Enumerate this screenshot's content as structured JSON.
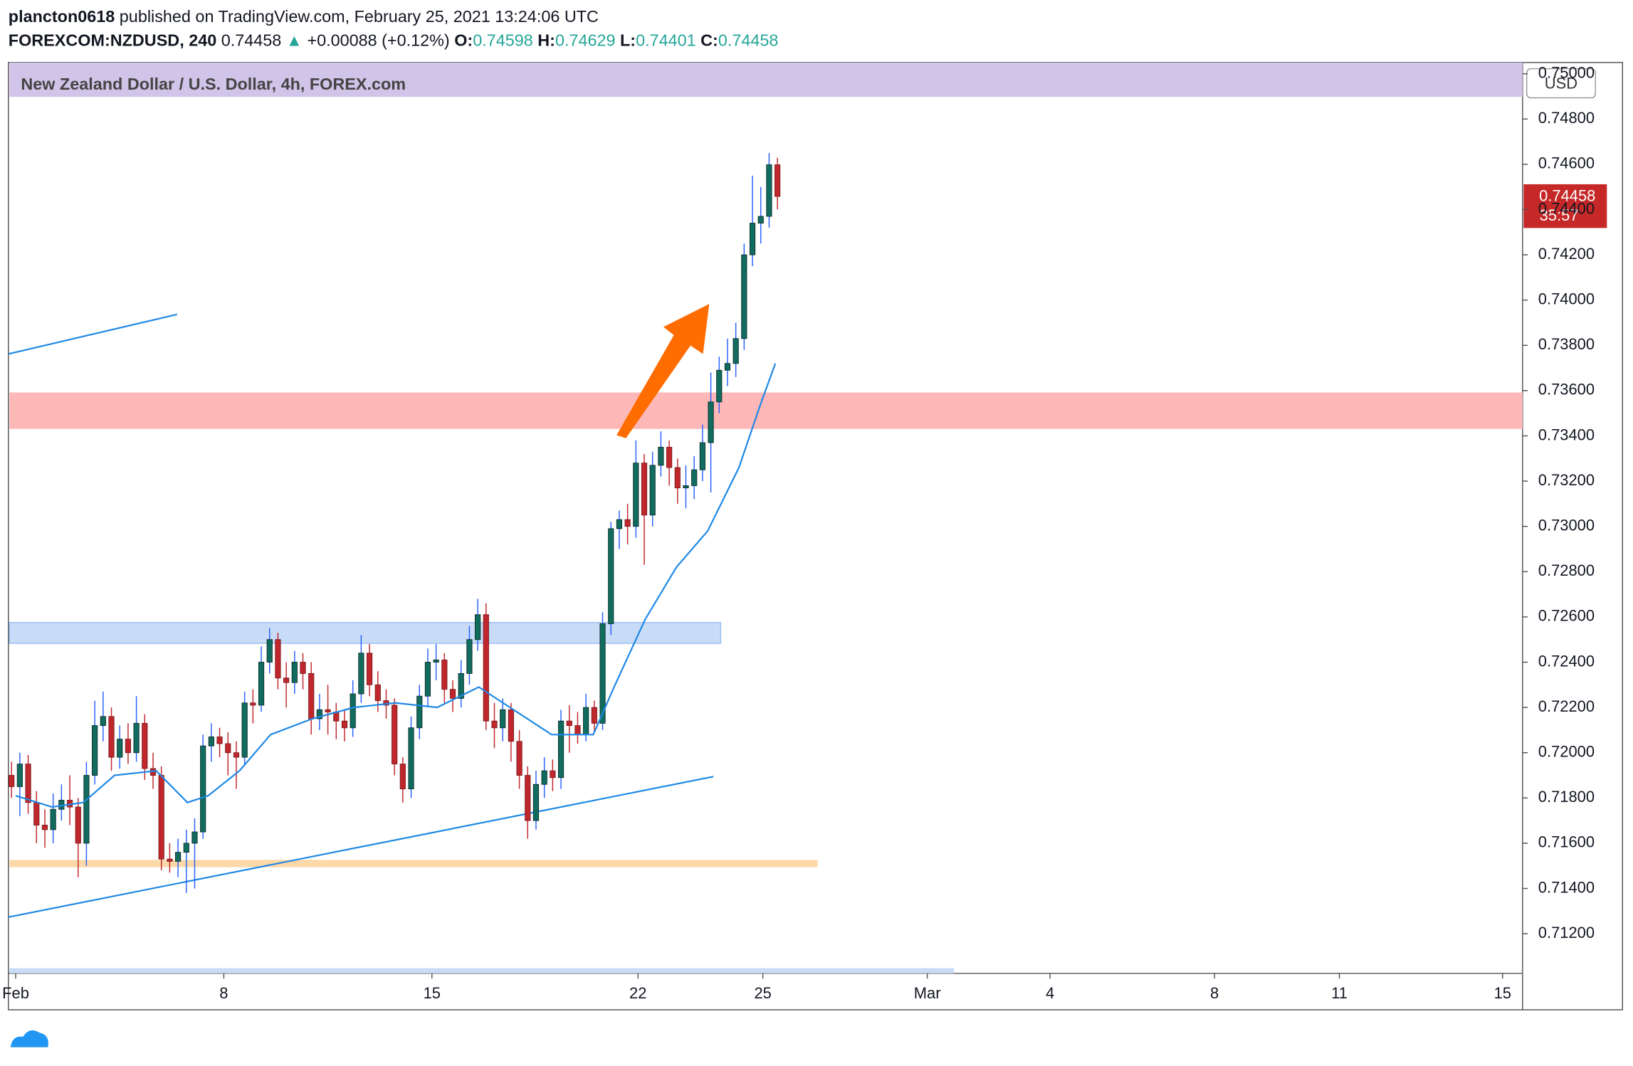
{
  "header": {
    "author": "plancton0618",
    "published": "published on TradingView.com, February 25, 2021 13:24:06 UTC",
    "symbol": "FOREXCOM:NZDUSD, 240",
    "last": "0.74458",
    "arrow": "▲",
    "change": "+0.00088 (+0.12%)",
    "o_label": "O:",
    "o": "0.74598",
    "h_label": "H:",
    "h": "0.74629",
    "l_label": "L:",
    "l": "0.74401",
    "c_label": "C:",
    "c": "0.74458"
  },
  "chart_data": {
    "type": "candlestick",
    "title": "New Zealand Dollar / U.S. Dollar, 4h, FOREX.com",
    "currency": "USD",
    "price_label": "0.74458",
    "countdown": "35:57",
    "up_color": "#116b5e",
    "down_color": "#c0272d",
    "xlim": [
      -0.175,
      36.2
    ],
    "ylim": [
      0.71025,
      0.7505
    ],
    "xticks": [
      {
        "value": 0,
        "label": "Feb"
      },
      {
        "value": 5,
        "label": "8"
      },
      {
        "value": 10,
        "label": "15"
      },
      {
        "value": 14.95,
        "label": "22"
      },
      {
        "value": 17.95,
        "label": "25"
      },
      {
        "value": 21.9,
        "label": "Mar"
      },
      {
        "value": 24.85,
        "label": "4"
      },
      {
        "value": 28.8,
        "label": "8"
      },
      {
        "value": 31.8,
        "label": "11"
      },
      {
        "value": 35.72,
        "label": "15"
      }
    ],
    "yticks": [
      {
        "value": 0.712,
        "label": "0.71200"
      },
      {
        "value": 0.714,
        "label": "0.71400"
      },
      {
        "value": 0.716,
        "label": "0.71600"
      },
      {
        "value": 0.718,
        "label": "0.71800"
      },
      {
        "value": 0.72,
        "label": "0.72000"
      },
      {
        "value": 0.722,
        "label": "0.72200"
      },
      {
        "value": 0.724,
        "label": "0.72400"
      },
      {
        "value": 0.726,
        "label": "0.72600"
      },
      {
        "value": 0.728,
        "label": "0.72800"
      },
      {
        "value": 0.73,
        "label": "0.73000"
      },
      {
        "value": 0.732,
        "label": "0.73200"
      },
      {
        "value": 0.734,
        "label": "0.73400"
      },
      {
        "value": 0.736,
        "label": "0.73600"
      },
      {
        "value": 0.738,
        "label": "0.73800"
      },
      {
        "value": 0.74,
        "label": "0.74000"
      },
      {
        "value": 0.742,
        "label": "0.74200"
      },
      {
        "value": 0.744,
        "label": "0.74400"
      },
      {
        "value": 0.746,
        "label": "0.74600"
      },
      {
        "value": 0.748,
        "label": "0.74800"
      },
      {
        "value": 0.75,
        "label": "0.75000"
      }
    ],
    "candles": {
      "x": [
        -0.1,
        0.1,
        0.3,
        0.5,
        0.7,
        0.9,
        1.1,
        1.3,
        1.5,
        1.7,
        1.9,
        2.1,
        2.3,
        2.5,
        2.7,
        2.9,
        3.1,
        3.3,
        3.5,
        3.7,
        3.9,
        4.1,
        4.3,
        4.5,
        4.7,
        4.9,
        5.1,
        5.3,
        5.5,
        5.7,
        5.9,
        6.1,
        6.3,
        6.5,
        6.7,
        6.9,
        7.1,
        7.3,
        7.5,
        7.7,
        7.9,
        8.1,
        8.3,
        8.5,
        8.7,
        8.9,
        9.1,
        9.3,
        9.5,
        9.7,
        9.9,
        10.1,
        10.3,
        10.5,
        10.7,
        10.9,
        11.1,
        11.3,
        11.5,
        11.7,
        11.9,
        12.1,
        12.3,
        12.5,
        12.7,
        12.9,
        13.1,
        13.3,
        13.5,
        13.7,
        13.9,
        14.1,
        14.3,
        14.5,
        14.7,
        14.9,
        15.1,
        15.3,
        15.5,
        15.7,
        15.9,
        16.1,
        16.3,
        16.5,
        16.7,
        16.9,
        17.1,
        17.3,
        17.5,
        17.7,
        17.9,
        18.1,
        18.3
      ],
      "open": [
        0.719,
        0.7185,
        0.7195,
        0.7178,
        0.7168,
        0.7166,
        0.7175,
        0.7179,
        0.7176,
        0.716,
        0.719,
        0.7212,
        0.7216,
        0.7198,
        0.7206,
        0.72,
        0.7213,
        0.7193,
        0.719,
        0.7153,
        0.7152,
        0.7156,
        0.716,
        0.7165,
        0.7203,
        0.7207,
        0.7204,
        0.72,
        0.7198,
        0.7222,
        0.7221,
        0.724,
        0.725,
        0.7233,
        0.7231,
        0.724,
        0.7235,
        0.7215,
        0.7219,
        0.7218,
        0.7214,
        0.7211,
        0.7226,
        0.7244,
        0.723,
        0.7223,
        0.7221,
        0.7195,
        0.7184,
        0.7211,
        0.7225,
        0.724,
        0.7241,
        0.7228,
        0.7224,
        0.7235,
        0.725,
        0.7261,
        0.7214,
        0.7211,
        0.7219,
        0.7205,
        0.719,
        0.717,
        0.7186,
        0.7192,
        0.7189,
        0.7214,
        0.7212,
        0.7208,
        0.722,
        0.7213,
        0.7257,
        0.7299,
        0.7303,
        0.73,
        0.7328,
        0.7305,
        0.7327,
        0.7335,
        0.7326,
        0.7317,
        0.7318,
        0.7325,
        0.7337,
        0.7355,
        0.7369,
        0.7372,
        0.7383,
        0.742,
        0.7434,
        0.7437,
        0.74598
      ],
      "high": [
        0.7196,
        0.72,
        0.7199,
        0.7183,
        0.7175,
        0.7182,
        0.7186,
        0.719,
        0.718,
        0.7196,
        0.7223,
        0.7227,
        0.722,
        0.7212,
        0.7213,
        0.7225,
        0.7217,
        0.72,
        0.7194,
        0.716,
        0.7162,
        0.7166,
        0.7171,
        0.7208,
        0.7213,
        0.7211,
        0.7209,
        0.7205,
        0.7227,
        0.7228,
        0.7247,
        0.7255,
        0.7253,
        0.724,
        0.7245,
        0.7244,
        0.724,
        0.7226,
        0.723,
        0.7222,
        0.7219,
        0.7232,
        0.7252,
        0.7248,
        0.7236,
        0.7228,
        0.7224,
        0.7198,
        0.7216,
        0.723,
        0.7246,
        0.7248,
        0.7244,
        0.7232,
        0.7241,
        0.7256,
        0.7268,
        0.7266,
        0.7222,
        0.7224,
        0.7222,
        0.721,
        0.7194,
        0.7192,
        0.7198,
        0.7197,
        0.7219,
        0.7221,
        0.7218,
        0.7226,
        0.7223,
        0.7262,
        0.7302,
        0.7307,
        0.731,
        0.7338,
        0.7332,
        0.7333,
        0.7342,
        0.7338,
        0.733,
        0.7327,
        0.7331,
        0.7345,
        0.7368,
        0.7375,
        0.7383,
        0.739,
        0.7425,
        0.7455,
        0.745,
        0.7465,
        0.74629
      ],
      "low": [
        0.718,
        0.7172,
        0.7173,
        0.716,
        0.7158,
        0.716,
        0.717,
        0.7168,
        0.7145,
        0.715,
        0.7186,
        0.7205,
        0.7192,
        0.7193,
        0.7195,
        0.7196,
        0.7188,
        0.7184,
        0.7148,
        0.7147,
        0.7145,
        0.7138,
        0.714,
        0.7162,
        0.7196,
        0.7198,
        0.719,
        0.7184,
        0.7195,
        0.7213,
        0.7218,
        0.7235,
        0.7228,
        0.722,
        0.7226,
        0.7228,
        0.7208,
        0.721,
        0.7208,
        0.7206,
        0.7205,
        0.7207,
        0.7222,
        0.7225,
        0.7218,
        0.7215,
        0.719,
        0.7178,
        0.718,
        0.7206,
        0.722,
        0.7232,
        0.7222,
        0.7218,
        0.722,
        0.723,
        0.7245,
        0.721,
        0.7202,
        0.7205,
        0.7196,
        0.7184,
        0.7162,
        0.7166,
        0.718,
        0.7183,
        0.7184,
        0.72,
        0.7204,
        0.7205,
        0.7209,
        0.721,
        0.7252,
        0.729,
        0.7292,
        0.7295,
        0.7283,
        0.73,
        0.7322,
        0.7318,
        0.731,
        0.7308,
        0.7312,
        0.732,
        0.7315,
        0.735,
        0.7362,
        0.7366,
        0.7378,
        0.7415,
        0.7425,
        0.7432,
        0.74401
      ],
      "close": [
        0.7185,
        0.7195,
        0.7178,
        0.7168,
        0.7166,
        0.7175,
        0.7179,
        0.7176,
        0.716,
        0.719,
        0.7212,
        0.7216,
        0.7198,
        0.7206,
        0.72,
        0.7213,
        0.7193,
        0.719,
        0.7153,
        0.7152,
        0.7156,
        0.716,
        0.7165,
        0.7203,
        0.7207,
        0.7204,
        0.72,
        0.7198,
        0.7222,
        0.7221,
        0.724,
        0.725,
        0.7233,
        0.7231,
        0.724,
        0.7235,
        0.7215,
        0.7219,
        0.7218,
        0.7214,
        0.7211,
        0.7226,
        0.7244,
        0.723,
        0.7223,
        0.7221,
        0.7195,
        0.7184,
        0.7211,
        0.7225,
        0.724,
        0.7241,
        0.7228,
        0.7224,
        0.7235,
        0.725,
        0.7261,
        0.7214,
        0.7211,
        0.7219,
        0.7205,
        0.719,
        0.717,
        0.7186,
        0.7192,
        0.7189,
        0.7214,
        0.7212,
        0.7208,
        0.722,
        0.7213,
        0.7257,
        0.7299,
        0.7303,
        0.73,
        0.7328,
        0.7305,
        0.7327,
        0.7335,
        0.7326,
        0.7317,
        0.7318,
        0.7325,
        0.7337,
        0.7355,
        0.7369,
        0.7372,
        0.7383,
        0.742,
        0.7434,
        0.7437,
        0.74598,
        0.74458
      ]
    },
    "series": [
      {
        "color": "#1e88e5",
        "x": [
          0,
          0.875,
          1.625,
          2.375,
          3.375,
          4.125,
          4.625,
          5.375,
          6.125,
          7.125,
          8.125,
          9.125,
          10.125,
          11.125,
          11.875,
          12.875,
          13.875,
          14.375,
          15.125,
          15.875,
          16.625,
          17.375,
          17.875,
          18.25
        ],
        "values": [
          0.7181,
          0.7176,
          0.7178,
          0.719,
          0.7192,
          0.7178,
          0.7181,
          0.7192,
          0.7208,
          0.7215,
          0.722,
          0.7222,
          0.722,
          0.7229,
          0.722,
          0.7208,
          0.7208,
          0.7229,
          0.7259,
          0.7282,
          0.7298,
          0.7326,
          0.7353,
          0.7372
        ]
      }
    ]
  }
}
